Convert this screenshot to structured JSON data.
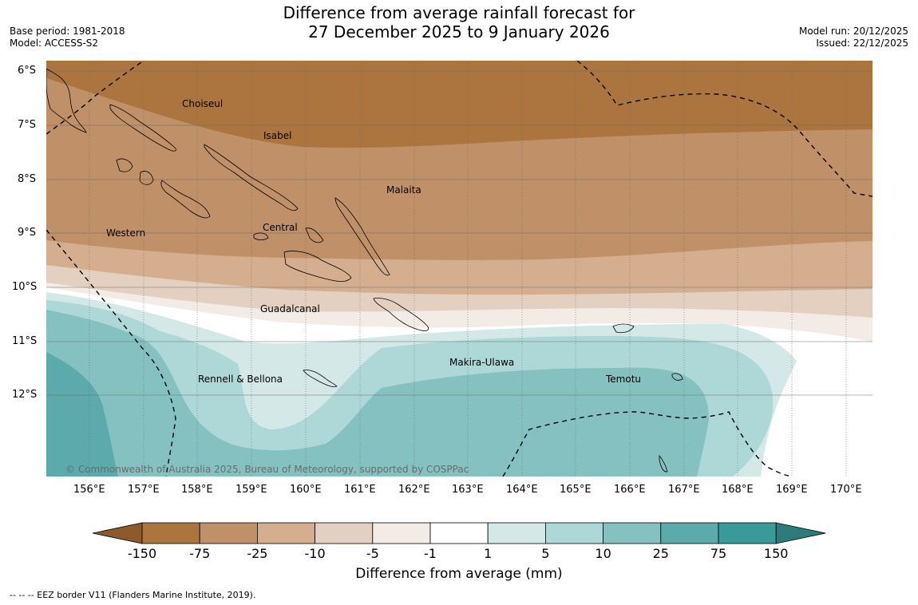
{
  "title_line1": "Difference from average rainfall forecast for",
  "title_line2": "27 December 2025 to 9 January 2026",
  "base_period": "Base period: 1981-2018",
  "model": "Model: ACCESS-S2",
  "model_run": "Model run: 20/12/2025",
  "issued": "Issued: 22/12/2025",
  "copyright": "© Commonwealth of Australia 2025, Bureau of Meteorology, supported by COSPPac",
  "lat_labels": [
    "6°S",
    "7°S",
    "8°S",
    "9°S",
    "10°S",
    "11°S",
    "12°S"
  ],
  "lon_labels": [
    "156°E",
    "157°E",
    "158°E",
    "159°E",
    "160°E",
    "161°E",
    "162°E",
    "163°E",
    "164°E",
    "165°E",
    "166°E",
    "167°E",
    "168°E",
    "169°E",
    "170°E"
  ],
  "regions": [
    "Choiseul",
    "Isabel",
    "Malaita",
    "Western",
    "Central",
    "Guadalcanal",
    "Makira-Ulawa",
    "Rennell & Bellona",
    "Temotu"
  ],
  "colorbar": {
    "labels": [
      "-150",
      "-75",
      "-25",
      "-10",
      "-5",
      "-1",
      "1",
      "5",
      "10",
      "25",
      "75",
      "150"
    ],
    "colors": [
      "#8c5a2c",
      "#ac7540",
      "#c09069",
      "#d4ae8e",
      "#e4d0c1",
      "#f3ebe6",
      "#ffffff",
      "#d5e8e8",
      "#aed7d7",
      "#86c1c1",
      "#5caaab",
      "#3a9a9a",
      "#2d7b7b"
    ],
    "title": "Difference from average (mm)"
  },
  "eez_note": "--  --  -- EEZ border V11 (Flanders Marine Institute, 2019)."
}
